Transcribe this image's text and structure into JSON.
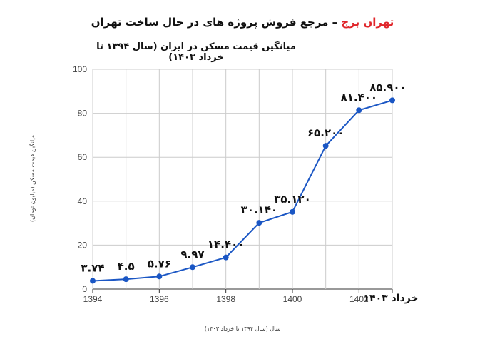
{
  "header": {
    "brand": "تهران برج",
    "dash": " – ",
    "tagline": "مرجع فروش پروژه های در حال ساخت تهران"
  },
  "chart_data": {
    "type": "line",
    "title": "میانگین قیمت مسکن در ایران (سال ۱۳۹۴ تا خرداد ۱۴۰۳)",
    "xlabel": "سال (سال ۱۳۹۴ تا خرداد ۱۴۰۳)",
    "ylabel": "میانگین قیمت مسکن (میلیون تومان)",
    "x": [
      1394,
      1395,
      1396,
      1397,
      1398,
      1399,
      1400,
      1401,
      1402,
      1403
    ],
    "values": [
      3.74,
      4.5,
      5.76,
      9.97,
      14.4,
      30.14,
      35.12,
      65.2,
      81.4,
      85.9
    ],
    "data_labels": [
      "۳.۷۴",
      "۴.۵",
      "۵.۷۶",
      "۹.۹۷",
      "۱۴.۴۰۰",
      "۳۰.۱۴۰",
      "۳۵.۱۲۰",
      "۶۵.۲۰۰",
      "۸۱.۴۰۰",
      "۸۵.۹۰۰"
    ],
    "x_ticks": [
      "1394",
      "1396",
      "1398",
      "1400",
      "1402"
    ],
    "x_tick_values": [
      1394,
      1396,
      1398,
      1400,
      1402
    ],
    "x_last_label": "خرداد ۱۴۰۳",
    "y_ticks": [
      "0",
      "20",
      "40",
      "60",
      "80",
      "100"
    ],
    "ylim": [
      0,
      100
    ],
    "xlim": [
      1394,
      1403
    ],
    "grid": true,
    "series_color": "#1a56c4"
  }
}
